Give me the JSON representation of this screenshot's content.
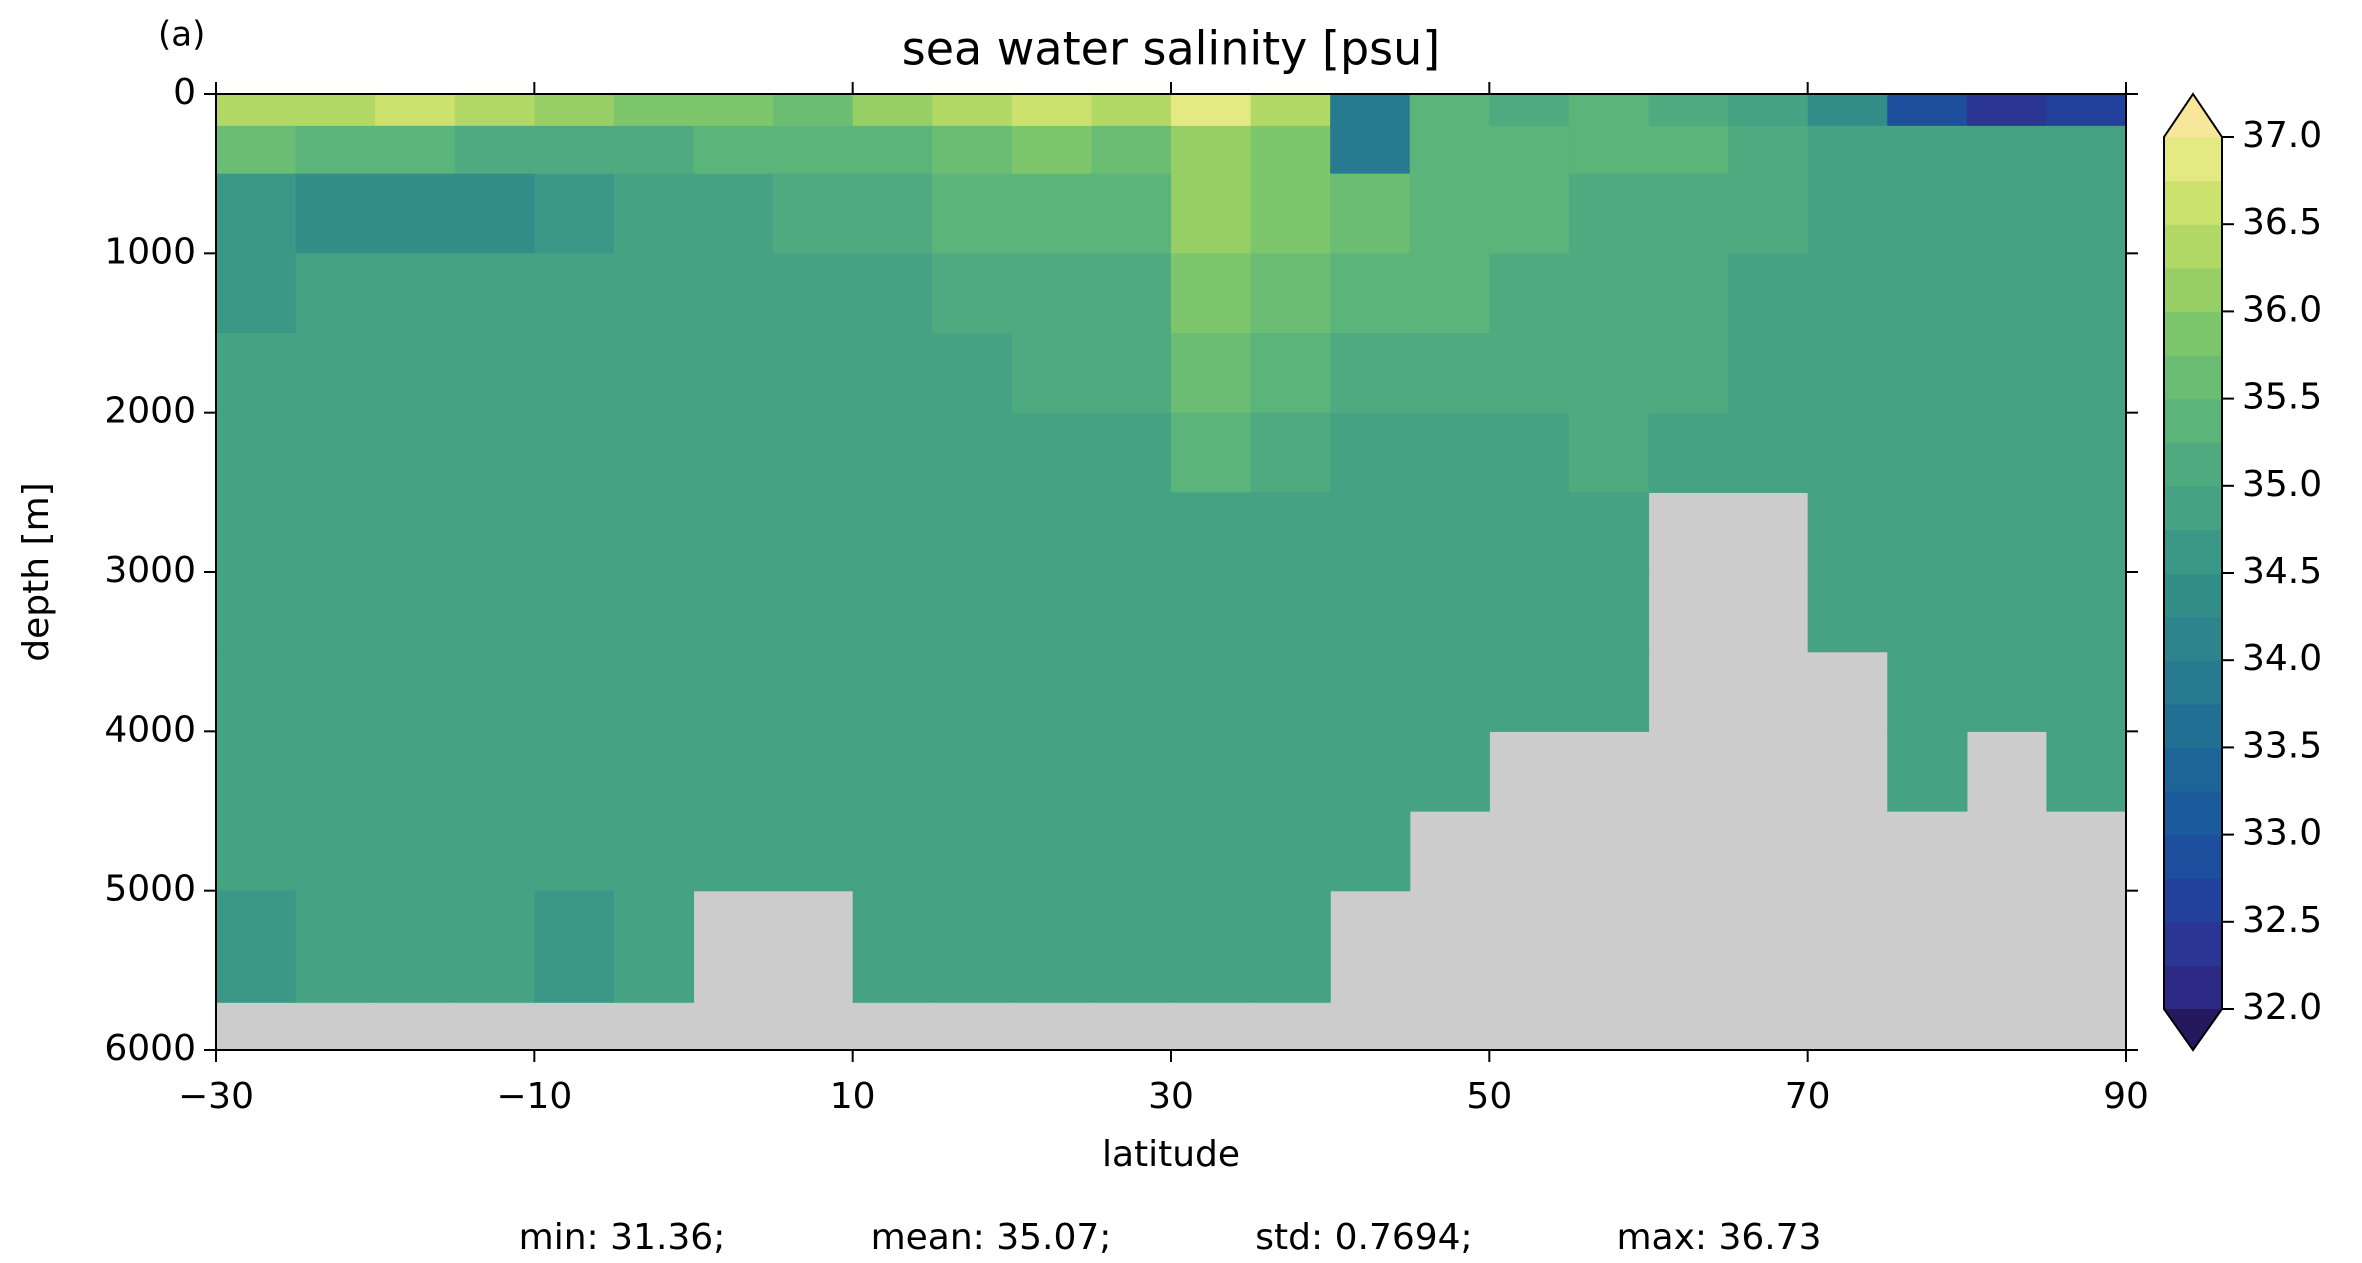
{
  "chart_data": {
    "type": "heatmap",
    "panel_label": "(a)",
    "title": "sea water salinity [psu]",
    "xlabel": "latitude",
    "ylabel": "depth [m]",
    "xlim": [
      -30,
      90
    ],
    "xticks": [
      {
        "value": -30,
        "label": "−30"
      },
      {
        "value": -10,
        "label": "−10"
      },
      10,
      30,
      50,
      70,
      90
    ],
    "ylim": [
      6000,
      0
    ],
    "yticks": [
      0,
      1000,
      2000,
      3000,
      4000,
      5000,
      6000
    ],
    "x_edges": [
      -30,
      -25,
      -20,
      -15,
      -10,
      -5,
      0,
      5,
      10,
      15,
      20,
      25,
      30,
      35,
      40,
      45,
      50,
      55,
      60,
      65,
      70,
      75,
      80,
      85,
      90
    ],
    "y_edges": [
      0,
      200,
      500,
      1000,
      1500,
      2000,
      2500,
      3000,
      3500,
      4000,
      4500,
      5000,
      5700
    ],
    "z": [
      [
        36.4,
        36.5,
        36.6,
        36.3,
        36.1,
        35.9,
        35.8,
        35.7,
        36.1,
        36.5,
        36.6,
        36.3,
        36.8,
        36.4,
        33.8,
        35.3,
        35.2,
        35.3,
        35.2,
        35.0,
        34.3,
        32.8,
        32.4,
        32.6
      ],
      [
        35.6,
        35.4,
        35.3,
        35.2,
        35.2,
        35.2,
        35.3,
        35.4,
        35.5,
        35.7,
        35.8,
        35.7,
        36.2,
        35.9,
        34.0,
        35.4,
        35.3,
        35.3,
        35.3,
        35.2,
        35.0,
        34.9,
        34.8,
        34.8
      ],
      [
        34.6,
        34.5,
        34.5,
        34.5,
        34.6,
        34.8,
        34.9,
        35.1,
        35.2,
        35.3,
        35.4,
        35.5,
        36.1,
        35.8,
        35.6,
        35.5,
        35.3,
        35.2,
        35.2,
        35.1,
        34.9,
        34.9,
        34.9,
        34.9
      ],
      [
        34.7,
        34.8,
        34.9,
        34.9,
        34.9,
        34.9,
        34.9,
        34.9,
        35.0,
        35.1,
        35.1,
        35.2,
        35.9,
        35.6,
        35.3,
        35.3,
        35.2,
        35.2,
        35.1,
        35.0,
        34.9,
        34.9,
        34.9,
        34.9
      ],
      [
        34.8,
        34.9,
        34.9,
        34.9,
        34.9,
        34.9,
        34.9,
        34.9,
        35.0,
        35.0,
        35.1,
        35.1,
        35.7,
        35.4,
        35.1,
        35.1,
        35.1,
        35.1,
        35.1,
        34.9,
        34.9,
        34.9,
        34.9,
        34.9
      ],
      [
        34.9,
        34.9,
        34.9,
        34.9,
        34.9,
        34.9,
        34.9,
        34.9,
        34.9,
        34.9,
        34.9,
        34.9,
        35.4,
        35.1,
        34.9,
        35.0,
        35.0,
        35.1,
        35.0,
        34.9,
        34.9,
        34.9,
        34.9,
        34.9
      ],
      [
        34.9,
        34.9,
        34.9,
        34.9,
        34.9,
        34.9,
        34.9,
        34.9,
        34.9,
        34.9,
        34.9,
        34.9,
        34.9,
        35.0,
        34.9,
        34.9,
        34.9,
        34.9,
        null,
        null,
        34.9,
        34.9,
        34.9,
        34.9
      ],
      [
        34.9,
        34.9,
        34.9,
        34.9,
        34.9,
        34.9,
        34.9,
        34.9,
        34.9,
        34.9,
        34.9,
        34.9,
        34.9,
        34.9,
        34.9,
        34.9,
        34.9,
        34.9,
        null,
        null,
        34.9,
        34.9,
        34.9,
        34.9
      ],
      [
        34.9,
        34.9,
        34.9,
        34.9,
        34.9,
        34.9,
        34.9,
        34.9,
        34.9,
        34.9,
        34.9,
        34.9,
        34.9,
        34.9,
        34.9,
        34.9,
        34.9,
        34.9,
        null,
        null,
        null,
        34.9,
        34.9,
        34.9
      ],
      [
        34.9,
        34.9,
        34.9,
        34.9,
        34.9,
        34.9,
        34.9,
        34.9,
        34.9,
        34.9,
        34.9,
        34.9,
        34.9,
        34.9,
        34.9,
        34.9,
        null,
        null,
        null,
        null,
        null,
        34.9,
        null,
        34.9
      ],
      [
        34.9,
        34.9,
        34.9,
        34.9,
        34.9,
        34.9,
        34.9,
        34.9,
        34.9,
        34.9,
        34.9,
        34.9,
        34.9,
        34.9,
        34.9,
        null,
        null,
        null,
        null,
        null,
        null,
        null,
        null,
        null
      ],
      [
        34.6,
        34.9,
        34.9,
        34.9,
        34.6,
        34.9,
        null,
        null,
        34.9,
        34.9,
        34.9,
        34.9,
        34.9,
        34.9,
        null,
        null,
        null,
        null,
        null,
        null,
        null,
        null,
        null,
        null
      ]
    ],
    "colorbar": {
      "levels": [
        32.0,
        32.25,
        32.5,
        32.75,
        33.0,
        33.25,
        33.5,
        33.75,
        34.0,
        34.25,
        34.5,
        34.75,
        35.0,
        35.25,
        35.5,
        35.75,
        36.0,
        36.25,
        36.5,
        36.75,
        37.0
      ],
      "colors": [
        "#2c2a84",
        "#2a3594",
        "#23409c",
        "#1e4e9e",
        "#1b5a9b",
        "#1d6596",
        "#216f92",
        "#277a8f",
        "#2d848c",
        "#338e89",
        "#3b9886",
        "#45a283",
        "#4fab7f",
        "#5bb47a",
        "#6bbd73",
        "#7ec66c",
        "#97cf66",
        "#b2d866",
        "#cde16e",
        "#e5e984"
      ],
      "under_color": "#26185f",
      "over_color": "#f8e79a",
      "ticks": [
        {
          "value": 32.0,
          "label": "32.0"
        },
        32.5,
        {
          "value": 33.0,
          "label": "33.0"
        },
        33.5,
        {
          "value": 34.0,
          "label": "34.0"
        },
        34.5,
        {
          "value": 35.0,
          "label": "35.0"
        },
        35.5,
        {
          "value": 36.0,
          "label": "36.0"
        },
        36.5,
        {
          "value": 37.0,
          "label": "37.0"
        }
      ]
    },
    "stats": [
      "min: 31.36;",
      "mean: 35.07;",
      "std: 0.7694;",
      "max: 36.73"
    ]
  }
}
